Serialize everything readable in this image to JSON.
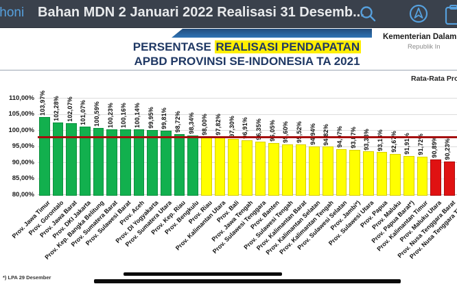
{
  "app_bar": {
    "back_label": "thoni",
    "title": "Bahan MDN 2 Januari 2022 Realisasi 31 Desemb...",
    "accent_color": "#56a0dd",
    "background_color": "#3a414c"
  },
  "slide": {
    "org_name": "Kementerian Dalam N",
    "org_sub": "Republik In",
    "title_line1_prefix": "PERSENTASE ",
    "title_line1_highlight": "REALISASI PENDAPATAN",
    "title_line2": "APBD PROVINSI SE-INDONESIA TA 2021",
    "average_label": "Rata-Rata Prov",
    "footnote": "*) LPA 29 Desember",
    "highlight_color": "#ffef00",
    "title_color": "#1f3864"
  },
  "chart_data": {
    "type": "bar",
    "title": "PERSENTASE REALISASI PENDAPATAN APBD PROVINSI SE-INDONESIA TA 2021",
    "xlabel": "",
    "ylabel": "",
    "ylim": [
      80,
      110
    ],
    "ytick_labels": [
      "110,00%",
      "105,00%",
      "100,00%",
      "95,00%",
      "90,00%",
      "85,00%",
      "80,00%"
    ],
    "grid": true,
    "legend": false,
    "average_line": {
      "value": 97.87,
      "color": "#a50d0d"
    },
    "color_map": {
      "green": "#12b04e",
      "yellow": "#ffff00",
      "red": "#e01212"
    },
    "categories": [
      "Prov. Jawa Timur",
      "Prov. Gorontalo",
      "Prov. Jawa Barat",
      "Prov. DKI Jakarta",
      "Prov. Kep. Bangka Belitung",
      "Prov. Sumatera Barat",
      "Prov. Sulawesi Barat",
      "Prov. Aceh",
      "Prov. DI Yogyakarta",
      "Prov. Sumatera Utara",
      "Prov. Kep. Riau",
      "Prov. Bengkulu",
      "Prov. Riau",
      "Prov. Kalimantan Utara",
      "Prov. Bali",
      "Prov. Jawa Tengah",
      "Prov. Sulawesi Tenggara",
      "Prov. Banten",
      "Prov. Sulawesi Tengah",
      "Prov. Kalimantan Barat",
      "Prov. Kalimantan Selatan",
      "Prov. Kalimantan Tengah",
      "Prov. Sulawesi Selatan",
      "Prov. Jambi*)",
      "Prov. Sulawesi Utara",
      "Prov. Papua",
      "Prov. Maluku",
      "Prov. Papua Barat*)",
      "Prov. Kalimantan Timur",
      "Prov. Maluku Utara",
      "Prov. Nusa Tenggara Barat",
      "Prov. Nusa Tenggara Timur"
    ],
    "values": [
      103.97,
      102.28,
      102.07,
      101.07,
      100.59,
      100.23,
      100.16,
      100.14,
      99.95,
      99.81,
      98.72,
      98.34,
      98.0,
      97.82,
      97.3,
      96.91,
      96.35,
      96.05,
      95.6,
      95.52,
      94.94,
      94.82,
      94.07,
      93.87,
      93.33,
      93.13,
      92.67,
      91.91,
      91.72,
      90.89,
      90.23,
      null
    ],
    "value_labels": [
      "103,97%",
      "102,28%",
      "102,07%",
      "101,07%",
      "100,59%",
      "100,23%",
      "100,16%",
      "100,14%",
      "99,95%",
      "99,81%",
      "98,72%",
      "98,34%",
      "98,00%",
      "97,82%",
      "97,30%",
      "96,91%",
      "96,35%",
      "96,05%",
      "95,60%",
      "95,52%",
      "94,94%",
      "94,82%",
      "94,07%",
      "93,87%",
      "93,33%",
      "93,13%",
      "92,67%",
      "91,91%",
      "91,72%",
      "90,89%",
      "90,23%",
      null
    ],
    "bar_colors": [
      "green",
      "green",
      "green",
      "green",
      "green",
      "green",
      "green",
      "green",
      "green",
      "green",
      "green",
      "green",
      "yellow",
      "yellow",
      "yellow",
      "yellow",
      "yellow",
      "yellow",
      "yellow",
      "yellow",
      "yellow",
      "yellow",
      "yellow",
      "yellow",
      "yellow",
      "yellow",
      "yellow",
      "yellow",
      "yellow",
      "red",
      "red",
      null
    ]
  }
}
